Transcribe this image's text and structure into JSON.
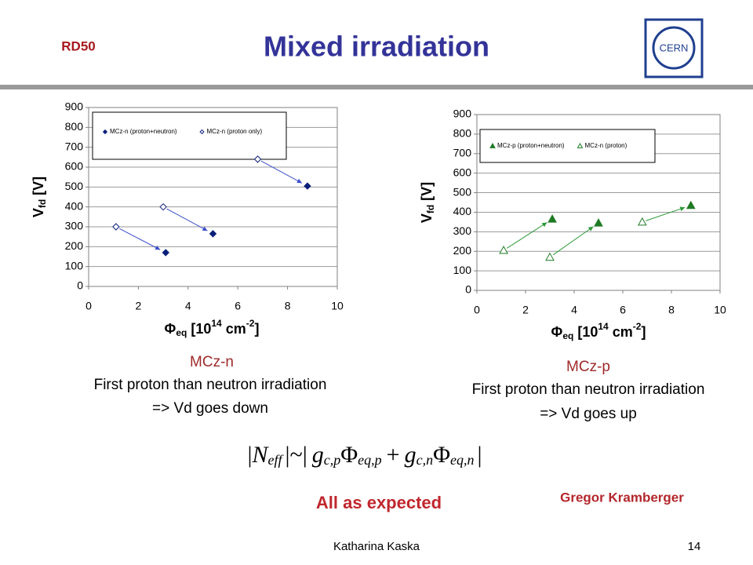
{
  "header": {
    "label": "RD50",
    "title": "Mixed irradiation",
    "logo": "CERN"
  },
  "chart_data": [
    {
      "type": "scatter",
      "legend": "top-left",
      "x_label": {
        "symbol": "Φ",
        "sub": "eq",
        "text": " [10",
        "sup1": "14",
        "unit": " cm",
        "sup2": "-2",
        "close": "]"
      },
      "y_label": {
        "symbol": "V",
        "sub": "fd",
        "text": " [V]"
      },
      "xlim": [
        0,
        10
      ],
      "xticks": [
        0,
        2,
        4,
        6,
        8,
        10
      ],
      "ylim": [
        0,
        900
      ],
      "yticks": [
        0,
        100,
        200,
        300,
        400,
        500,
        600,
        700,
        800,
        900
      ],
      "grid": true,
      "arrow_color": "#3b50c8",
      "series": [
        {
          "name": "MCz-n (proton+neutron)",
          "color": "#0a1f7a",
          "marker": "diamond",
          "filled": true,
          "x": [
            3.1,
            5.0,
            8.8
          ],
          "values": [
            170,
            265,
            505
          ]
        },
        {
          "name": "MCz-n (proton only)",
          "color": "#0a1f7a",
          "marker": "diamond",
          "filled": false,
          "x": [
            1.1,
            3.0,
            6.8
          ],
          "values": [
            300,
            400,
            640
          ]
        }
      ]
    },
    {
      "type": "scatter",
      "legend": "top-left",
      "x_label": {
        "symbol": "Φ",
        "sub": "eq",
        "text": " [10",
        "sup1": "14",
        "unit": " cm",
        "sup2": "-2",
        "close": "]"
      },
      "y_label": {
        "symbol": "V",
        "sub": "fd",
        "text": " [V]"
      },
      "xlim": [
        0,
        10
      ],
      "xticks": [
        0,
        2,
        4,
        6,
        8,
        10
      ],
      "ylim": [
        0,
        900
      ],
      "yticks": [
        0,
        100,
        200,
        300,
        400,
        500,
        600,
        700,
        800,
        900
      ],
      "grid": true,
      "arrow_color": "#2f9a3a",
      "series": [
        {
          "name": "MCz-p (proton+neutron)",
          "color": "#1f7a24",
          "marker": "triangle",
          "filled": true,
          "x": [
            3.1,
            5.0,
            8.8
          ],
          "values": [
            365,
            345,
            435
          ]
        },
        {
          "name": "MCz-n (proton)",
          "color": "#1f7a24",
          "marker": "triangle",
          "filled": false,
          "x": [
            1.1,
            3.0,
            6.8
          ],
          "values": [
            205,
            170,
            350
          ]
        }
      ]
    }
  ],
  "captions": [
    {
      "title": "MCz-n",
      "lines": [
        "First proton than neutron irradiation",
        "=> Vd goes down"
      ]
    },
    {
      "title": "MCz-p",
      "lines": [
        "First proton than neutron irradiation",
        "=> Vd goes up"
      ]
    }
  ],
  "formula": {
    "bar1": "|",
    "n": "N",
    "n_sub": "eff",
    "mid": "|~|",
    "g1": "g",
    "g1_sub": "c,p",
    "phi1": "Φ",
    "phi1_sub": "eq,p",
    "plus": "+",
    "g2": "g",
    "g2_sub": "c,n",
    "phi2": "Φ",
    "phi2_sub": "eq,n",
    "bar2": "|"
  },
  "conclusion": "All as expected",
  "credit": "Gregor Kramberger",
  "footer": {
    "author": "Katharina Kaska",
    "page": "14"
  }
}
